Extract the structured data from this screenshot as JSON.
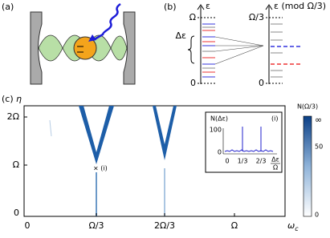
{
  "panels": {
    "a": {
      "label": "(a)"
    },
    "b": {
      "label": "(b)",
      "left_axis": "ε",
      "left_ticks": [
        "Ω",
        "0"
      ],
      "brace": "Δε",
      "right_axis": "ε (mod Ω/3)",
      "right_ticks": [
        "Ω/3",
        "0"
      ]
    },
    "c": {
      "label": "(c)",
      "y_axis": "η",
      "y_ticks": [
        "2Ω",
        "Ω",
        "0"
      ],
      "x_ticks": [
        "0",
        "Ω/3",
        "2Ω/3",
        "Ω"
      ],
      "x_axis": "ω",
      "x_axis_sub": "c",
      "marker": "× (i)",
      "inset": {
        "y_axis": "N(Δε)",
        "tag": "(i)",
        "y_ticks": [
          "100",
          "0"
        ],
        "x_ticks": [
          "0",
          "1/3",
          "2/3"
        ],
        "x_axis_num": "Δε",
        "x_axis_den": "Ω"
      },
      "colorbar": {
        "label": "N(Ω/3)",
        "ticks": [
          "∞",
          "50",
          "0"
        ]
      }
    }
  }
}
